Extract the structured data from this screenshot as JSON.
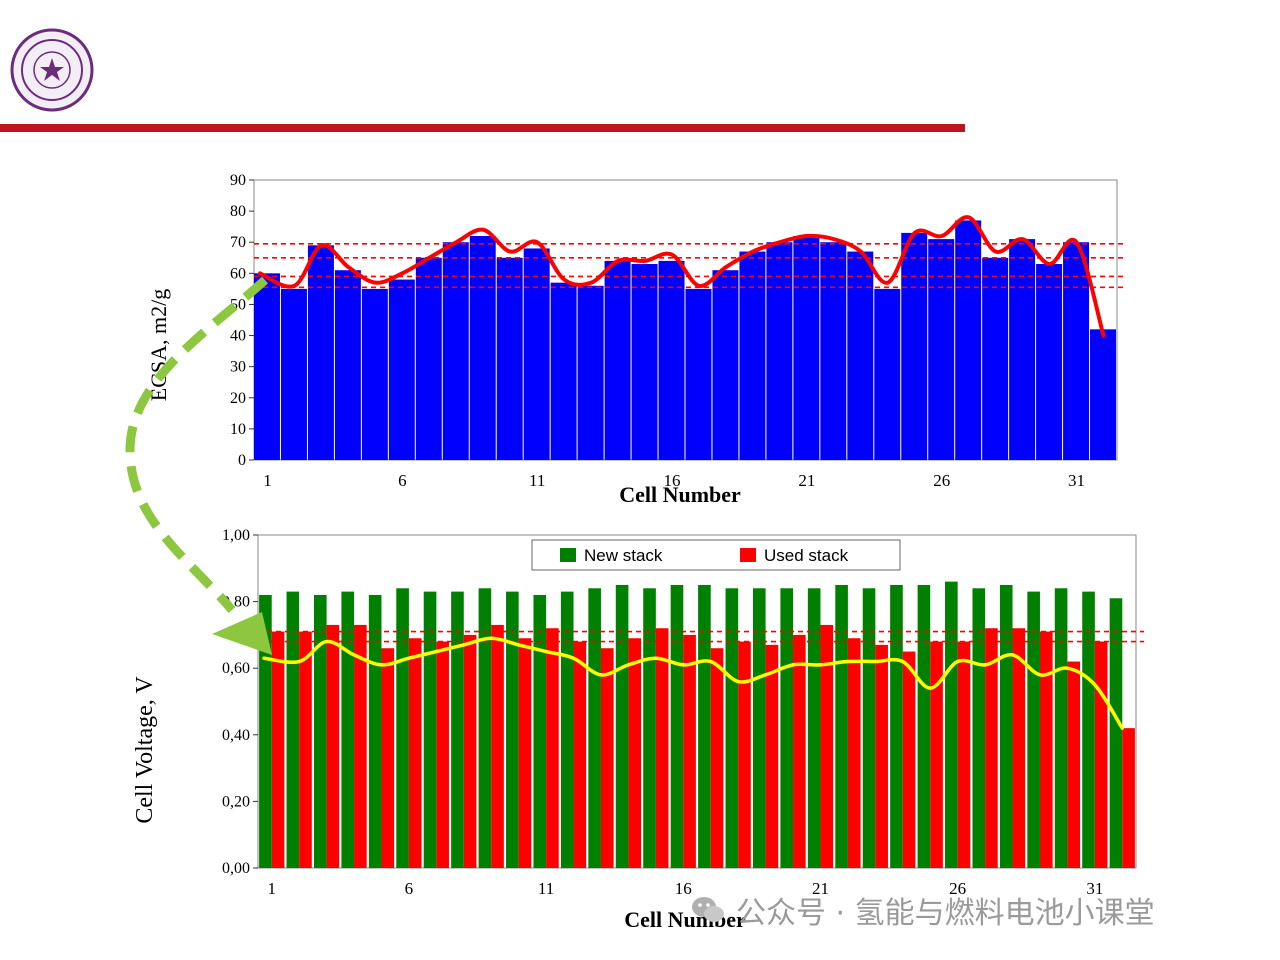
{
  "header": {
    "logo_name": "university-seal",
    "rule_color": "#c0141c"
  },
  "watermark": {
    "icon": "wechat-icon",
    "text": "公众号 · 氢能与燃料电池小课堂"
  },
  "chart_data": [
    {
      "type": "bar",
      "title": "",
      "xlabel": "Cell Number",
      "ylabel": "ECSA, m2/g",
      "ylim": [
        0,
        90
      ],
      "yticks": [
        0,
        10,
        20,
        30,
        40,
        50,
        60,
        70,
        80,
        90
      ],
      "xtick_labels": [
        "1",
        "6",
        "11",
        "16",
        "21",
        "26",
        "31"
      ],
      "categories": [
        1,
        2,
        3,
        4,
        5,
        6,
        7,
        8,
        9,
        10,
        11,
        12,
        13,
        14,
        15,
        16,
        17,
        18,
        19,
        20,
        21,
        22,
        23,
        24,
        25,
        26,
        27,
        28,
        29,
        30,
        31,
        32
      ],
      "series": [
        {
          "values": [
            60,
            55,
            69,
            61,
            55,
            58,
            65,
            70,
            72,
            65,
            68,
            57,
            56,
            64,
            63,
            64,
            55,
            61,
            67,
            70,
            72,
            70,
            67,
            55,
            73,
            71,
            77,
            65,
            71,
            63,
            70,
            42
          ],
          "color": "#0000ff"
        }
      ],
      "trend": {
        "values": [
          60,
          56,
          69,
          62,
          57,
          60,
          65,
          70,
          74,
          67,
          70,
          58,
          57,
          64,
          64,
          66,
          56,
          62,
          67,
          70,
          72,
          71,
          67,
          57,
          73,
          72,
          78,
          67,
          71,
          63,
          70,
          40
        ],
        "color": "#ff0000"
      },
      "reference_lines": [
        69.5,
        65,
        59,
        55.5
      ],
      "reference_color": "#ff0000",
      "grid": false
    },
    {
      "type": "bar",
      "title": "",
      "xlabel": "Cell Number",
      "ylabel": "Cell Voltage, V",
      "ylim": [
        0,
        1
      ],
      "ytick_values": [
        0,
        0.2,
        0.4,
        0.6,
        0.8,
        1.0
      ],
      "ytick_labels": [
        "0,00",
        "0,20",
        "0,40",
        "0,60",
        "0,80",
        "1,00"
      ],
      "xtick_labels": [
        "1",
        "6",
        "11",
        "16",
        "21",
        "26",
        "31"
      ],
      "categories": [
        1,
        2,
        3,
        4,
        5,
        6,
        7,
        8,
        9,
        10,
        11,
        12,
        13,
        14,
        15,
        16,
        17,
        18,
        19,
        20,
        21,
        22,
        23,
        24,
        25,
        26,
        27,
        28,
        29,
        30,
        31,
        32
      ],
      "series": [
        {
          "name": "New stack",
          "color": "#008000",
          "values": [
            0.82,
            0.83,
            0.82,
            0.83,
            0.82,
            0.84,
            0.83,
            0.83,
            0.84,
            0.83,
            0.82,
            0.83,
            0.84,
            0.85,
            0.84,
            0.85,
            0.85,
            0.84,
            0.84,
            0.84,
            0.84,
            0.85,
            0.84,
            0.85,
            0.85,
            0.86,
            0.84,
            0.85,
            0.83,
            0.84,
            0.83,
            0.81
          ]
        },
        {
          "name": "Used stack",
          "color": "#ff0000",
          "values": [
            0.71,
            0.71,
            0.73,
            0.73,
            0.66,
            0.69,
            0.68,
            0.7,
            0.73,
            0.69,
            0.72,
            0.68,
            0.66,
            0.69,
            0.72,
            0.7,
            0.66,
            0.68,
            0.67,
            0.7,
            0.73,
            0.69,
            0.67,
            0.65,
            0.68,
            0.68,
            0.72,
            0.72,
            0.71,
            0.62,
            0.68,
            0.42
          ]
        }
      ],
      "trend": {
        "values": [
          0.63,
          0.62,
          0.68,
          0.64,
          0.61,
          0.63,
          0.65,
          0.67,
          0.69,
          0.67,
          0.65,
          0.63,
          0.58,
          0.61,
          0.63,
          0.61,
          0.62,
          0.56,
          0.58,
          0.61,
          0.61,
          0.62,
          0.62,
          0.62,
          0.54,
          0.62,
          0.61,
          0.64,
          0.58,
          0.6,
          0.55,
          0.42
        ],
        "color": "#ffff00"
      },
      "reference_lines": [
        0.71,
        0.68
      ],
      "reference_color": "#ff0000",
      "legend_position": "top-right",
      "grid": false
    }
  ],
  "arrow": {
    "color": "#8dc63f"
  }
}
